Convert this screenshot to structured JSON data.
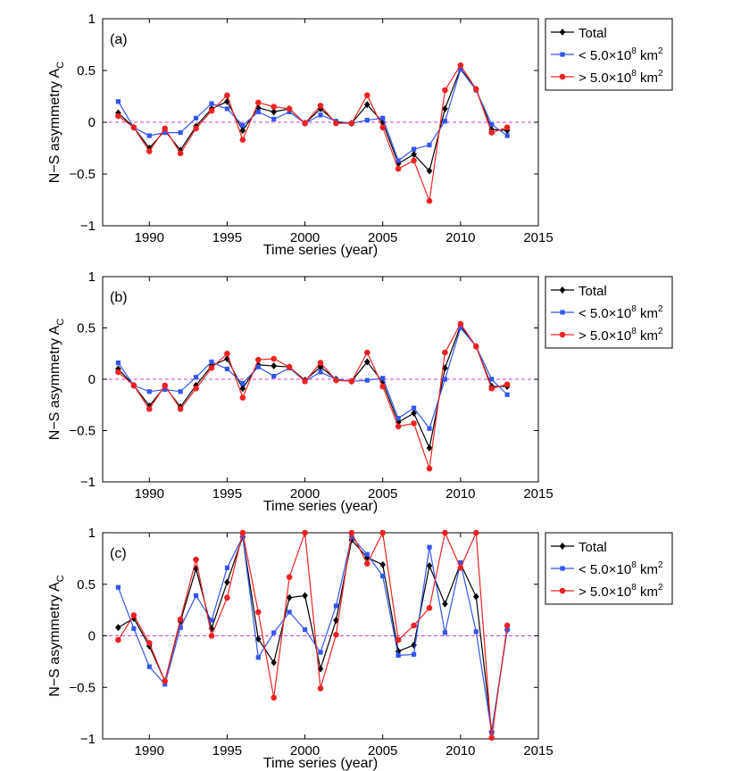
{
  "chart_data": [
    {
      "type": "line",
      "panel_label": "(a)",
      "xlabel": "Time series (year)",
      "ylabel": "N−S asymmetry A",
      "ylabel_sub": "C",
      "xlim": [
        1987,
        2015
      ],
      "ylim": [
        -1,
        1
      ],
      "xticks": [
        1990,
        1995,
        2000,
        2005,
        2010,
        2015
      ],
      "yticks": [
        -1,
        -0.5,
        0,
        0.5,
        1
      ],
      "ytick_labels": [
        "−1",
        "−0.5",
        "0",
        "0.5",
        "1"
      ],
      "reference_line": 0,
      "x": [
        1988,
        1989,
        1990,
        1991,
        1992,
        1993,
        1994,
        1995,
        1996,
        1997,
        1998,
        1999,
        2000,
        2001,
        2002,
        2003,
        2004,
        2005,
        2006,
        2007,
        2008,
        2009,
        2010,
        2011,
        2012,
        2013
      ],
      "series": [
        {
          "name": "Total",
          "color": "#000000",
          "marker": "diamond",
          "values": [
            0.09,
            -0.05,
            -0.25,
            -0.08,
            -0.27,
            -0.04,
            0.13,
            0.2,
            -0.08,
            0.14,
            0.1,
            0.13,
            -0.01,
            0.13,
            0.0,
            -0.01,
            0.17,
            0.0,
            -0.4,
            -0.31,
            -0.47,
            0.13,
            0.52,
            0.32,
            -0.07,
            -0.08
          ]
        },
        {
          "name": "< 5.0×10",
          "name_sup": "8",
          "name_unit": " km",
          "name_unit_sup": "2",
          "color": "#3355ee",
          "marker": "square",
          "values": [
            0.2,
            -0.05,
            -0.13,
            -0.1,
            -0.1,
            0.04,
            0.18,
            0.13,
            -0.03,
            0.1,
            0.03,
            0.1,
            -0.01,
            0.07,
            0.01,
            -0.01,
            0.02,
            0.04,
            -0.37,
            -0.26,
            -0.22,
            0.01,
            0.51,
            0.31,
            -0.02,
            -0.13
          ]
        },
        {
          "name": "> 5.0×10",
          "name_sup": "8",
          "name_unit": " km",
          "name_unit_sup": "2",
          "color": "#ee2222",
          "marker": "circle",
          "values": [
            0.06,
            -0.05,
            -0.28,
            -0.06,
            -0.3,
            -0.06,
            0.11,
            0.26,
            -0.17,
            0.19,
            0.15,
            0.13,
            -0.01,
            0.16,
            -0.01,
            -0.01,
            0.26,
            -0.05,
            -0.45,
            -0.37,
            -0.76,
            0.31,
            0.55,
            0.32,
            -0.1,
            -0.05
          ]
        }
      ]
    },
    {
      "type": "line",
      "panel_label": "(b)",
      "xlabel": "Time series (year)",
      "ylabel": "N−S asymmetry A",
      "ylabel_sub": "C",
      "xlim": [
        1987,
        2015
      ],
      "ylim": [
        -1,
        1
      ],
      "xticks": [
        1990,
        1995,
        2000,
        2005,
        2010,
        2015
      ],
      "yticks": [
        -1,
        -0.5,
        0,
        0.5,
        1
      ],
      "ytick_labels": [
        "−1",
        "−0.5",
        "0",
        "0.5",
        "1"
      ],
      "reference_line": 0,
      "x": [
        1988,
        1989,
        1990,
        1991,
        1992,
        1993,
        1994,
        1995,
        1996,
        1997,
        1998,
        1999,
        2000,
        2001,
        2002,
        2003,
        2004,
        2005,
        2006,
        2007,
        2008,
        2009,
        2010,
        2011,
        2012,
        2013
      ],
      "series": [
        {
          "name": "Total",
          "color": "#000000",
          "marker": "diamond",
          "values": [
            0.1,
            -0.06,
            -0.26,
            -0.07,
            -0.27,
            -0.06,
            0.13,
            0.2,
            -0.09,
            0.14,
            0.13,
            0.12,
            -0.01,
            0.12,
            0.0,
            -0.02,
            0.17,
            -0.03,
            -0.42,
            -0.33,
            -0.67,
            0.11,
            0.52,
            0.32,
            -0.07,
            -0.07
          ]
        },
        {
          "name": "< 5.0×10",
          "name_sup": "8",
          "name_unit": " km",
          "name_unit_sup": "2",
          "color": "#3355ee",
          "marker": "square",
          "values": [
            0.16,
            -0.06,
            -0.12,
            -0.1,
            -0.12,
            0.02,
            0.17,
            0.1,
            -0.04,
            0.12,
            0.03,
            0.11,
            -0.02,
            0.07,
            0.0,
            -0.02,
            -0.01,
            0.01,
            -0.38,
            -0.28,
            -0.48,
            0.0,
            0.5,
            0.32,
            0.0,
            -0.15
          ]
        },
        {
          "name": "> 5.0×10",
          "name_sup": "8",
          "name_unit": " km",
          "name_unit_sup": "2",
          "color": "#ee2222",
          "marker": "circle",
          "values": [
            0.07,
            -0.06,
            -0.29,
            -0.06,
            -0.29,
            -0.09,
            0.11,
            0.25,
            -0.18,
            0.19,
            0.2,
            0.12,
            -0.02,
            0.16,
            -0.01,
            -0.02,
            0.26,
            -0.07,
            -0.46,
            -0.43,
            -0.87,
            0.26,
            0.54,
            0.32,
            -0.09,
            -0.05
          ]
        }
      ]
    },
    {
      "type": "line",
      "panel_label": "(c)",
      "xlabel": "Time series (year)",
      "ylabel": "N−S asymmetry A",
      "ylabel_sub": "C",
      "xlim": [
        1987,
        2015
      ],
      "ylim": [
        -1,
        1
      ],
      "xticks": [
        1990,
        1995,
        2000,
        2005,
        2010,
        2015
      ],
      "yticks": [
        -1,
        -0.5,
        0,
        0.5,
        1
      ],
      "ytick_labels": [
        "−1",
        "−0.5",
        "0",
        "0.5",
        "1"
      ],
      "reference_line": 0,
      "x": [
        1988,
        1989,
        1990,
        1991,
        1992,
        1993,
        1994,
        1995,
        1996,
        1997,
        1998,
        1999,
        2000,
        2001,
        2002,
        2003,
        2004,
        2005,
        2006,
        2007,
        2008,
        2009,
        2010,
        2011,
        2012,
        2013
      ],
      "series": [
        {
          "name": "Total",
          "color": "#000000",
          "marker": "diamond",
          "values": [
            0.08,
            0.17,
            -0.1,
            -0.44,
            0.14,
            0.65,
            0.07,
            0.52,
            0.96,
            -0.03,
            -0.26,
            0.37,
            0.39,
            -0.32,
            0.15,
            0.93,
            0.76,
            0.69,
            -0.15,
            -0.09,
            0.68,
            0.31,
            0.7,
            0.38,
            -0.93,
            0.06
          ]
        },
        {
          "name": "< 5.0×10",
          "name_sup": "8",
          "name_unit": " km",
          "name_unit_sup": "2",
          "color": "#3355ee",
          "marker": "square",
          "values": [
            0.47,
            0.07,
            -0.3,
            -0.47,
            0.08,
            0.39,
            0.15,
            0.66,
            0.96,
            -0.21,
            0.03,
            0.23,
            0.06,
            -0.16,
            0.29,
            0.96,
            0.79,
            0.58,
            -0.19,
            -0.18,
            0.86,
            0.03,
            0.71,
            0.04,
            -0.94,
            0.06
          ]
        },
        {
          "name": "> 5.0×10",
          "name_sup": "8",
          "name_unit": " km",
          "name_unit_sup": "2",
          "color": "#ee2222",
          "marker": "circle",
          "values": [
            -0.04,
            0.2,
            -0.07,
            -0.44,
            0.16,
            0.74,
            0.0,
            0.37,
            1.0,
            0.23,
            -0.6,
            0.57,
            1.0,
            -0.51,
            0.01,
            1.0,
            0.7,
            1.0,
            -0.04,
            0.1,
            0.27,
            1.0,
            0.66,
            1.0,
            -0.99,
            0.1
          ]
        }
      ]
    }
  ]
}
